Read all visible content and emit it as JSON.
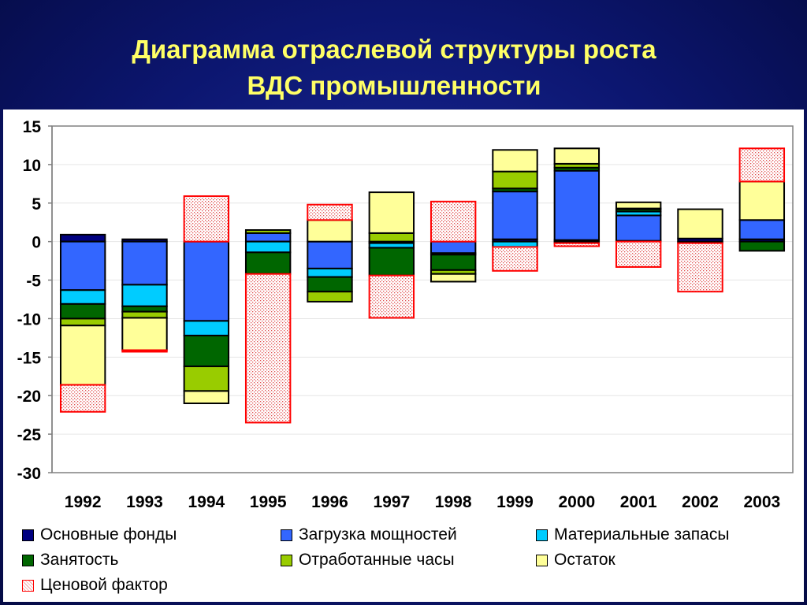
{
  "title": {
    "line1": "Диаграмма отраслевой структуры роста",
    "line2": "ВДС промышленности"
  },
  "colors": {
    "background": "#0c1670",
    "title": "#ffff66",
    "plot_border": "#808080",
    "grid": "#e6e6e6"
  },
  "chart_data": {
    "type": "bar",
    "stacked": true,
    "title": "",
    "xlabel": "",
    "ylabel": "",
    "ylim": [
      -30,
      15
    ],
    "yticks": [
      15,
      10,
      5,
      0,
      -5,
      -10,
      -15,
      -20,
      -25,
      -30
    ],
    "grid": true,
    "legend_position": "bottom",
    "categories": [
      "1992",
      "1993",
      "1994",
      "1995",
      "1996",
      "1997",
      "1998",
      "1999",
      "2000",
      "2001",
      "2002",
      "2003"
    ],
    "series": [
      {
        "name": "Основные фонды",
        "color": "#000080",
        "pattern": "solid",
        "values": [
          0.9,
          0.3,
          0,
          0,
          0,
          0,
          0,
          0.3,
          0.2,
          0.1,
          0.4,
          0.3
        ]
      },
      {
        "name": "Загрузка мощностей",
        "color": "#3366ff",
        "pattern": "solid",
        "values": [
          -6.3,
          -5.6,
          -10.3,
          1.1,
          -3.5,
          -0.2,
          -1.5,
          6.2,
          9.0,
          3.3,
          -0.2,
          2.5
        ]
      },
      {
        "name": "Материальные запасы",
        "color": "#00ccff",
        "pattern": "solid",
        "values": [
          -1.8,
          -2.8,
          -1.9,
          -1.4,
          -1.1,
          -0.6,
          -0.2,
          -0.7,
          -0.2,
          0.5,
          0,
          0
        ]
      },
      {
        "name": "Занятость",
        "color": "#006600",
        "pattern": "solid",
        "values": [
          -1.9,
          -0.7,
          -4.0,
          -2.8,
          -1.9,
          -3.6,
          -2.0,
          0.4,
          0.4,
          0.3,
          0,
          -1.2
        ]
      },
      {
        "name": "Отработанные часы",
        "color": "#99cc00",
        "pattern": "solid",
        "values": [
          -0.9,
          -0.8,
          -3.2,
          0.4,
          -1.3,
          1.1,
          -0.5,
          2.2,
          0.5,
          0.1,
          0,
          0
        ]
      },
      {
        "name": "Остаток",
        "color": "#ffff99",
        "pattern": "solid",
        "values": [
          -7.7,
          -4.2,
          -1.6,
          0,
          2.8,
          5.3,
          -1.0,
          2.8,
          2.0,
          0.8,
          3.8,
          5.0
        ]
      },
      {
        "name": "Ценовой фактор",
        "color": "#ff0000",
        "pattern": "dotted",
        "values": [
          -3.5,
          -0.2,
          5.9,
          -19.3,
          2.0,
          -5.5,
          5.2,
          -3.1,
          -0.4,
          -3.3,
          -6.3,
          4.3
        ]
      }
    ]
  }
}
